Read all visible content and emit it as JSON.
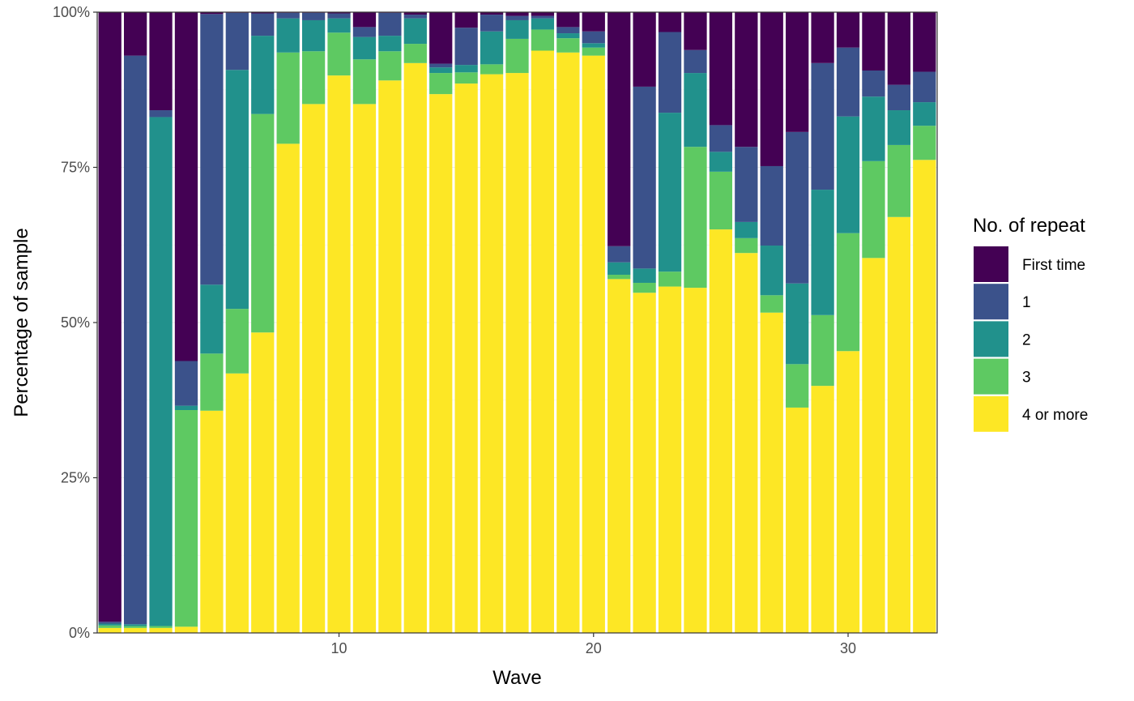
{
  "chart_data": {
    "type": "bar",
    "stacked": true,
    "percent": true,
    "xlabel": "Wave",
    "ylabel": "Percentage of sample",
    "x": [
      1,
      2,
      3,
      4,
      5,
      6,
      7,
      8,
      9,
      10,
      11,
      12,
      13,
      14,
      15,
      16,
      17,
      18,
      19,
      20,
      21,
      22,
      23,
      24,
      25,
      26,
      27,
      28,
      29,
      30,
      31,
      32,
      33
    ],
    "x_ticks": [
      10,
      20,
      30
    ],
    "x_tick_labels": [
      "10",
      "20",
      "30"
    ],
    "ylim": [
      0,
      100
    ],
    "y_ticks": [
      0,
      25,
      50,
      75,
      100
    ],
    "y_tick_labels": [
      "0%",
      "25%",
      "50%",
      "75%",
      "100%"
    ],
    "grid": true,
    "legend": {
      "title": "No. of repeat",
      "position": "right"
    },
    "series": [
      {
        "name": "4 or more",
        "color": "#fde725",
        "values": [
          0.8,
          0.8,
          0.8,
          1.0,
          35.8,
          41.8,
          48.4,
          78.8,
          85.2,
          89.8,
          85.2,
          89.0,
          91.8,
          86.8,
          88.5,
          90.0,
          90.2,
          93.8,
          93.5,
          93.0,
          57.0,
          54.8,
          55.8,
          55.6,
          65.0,
          61.2,
          51.6,
          36.3,
          39.8,
          45.4,
          60.4,
          67.0,
          76.2
        ]
      },
      {
        "name": "3",
        "color": "#5ec962",
        "values": [
          0.4,
          0.3,
          0.3,
          34.9,
          9.2,
          10.4,
          35.2,
          14.7,
          8.5,
          6.9,
          7.2,
          4.7,
          3.1,
          3.4,
          1.8,
          1.6,
          5.5,
          3.4,
          2.3,
          1.3,
          0.7,
          1.6,
          2.4,
          22.7,
          9.3,
          2.4,
          2.8,
          7.0,
          11.4,
          19.0,
          15.6,
          11.6,
          5.5
        ]
      },
      {
        "name": "2",
        "color": "#21918c",
        "values": [
          0.3,
          0.3,
          82.0,
          0.7,
          11.1,
          38.5,
          12.6,
          5.5,
          5.0,
          2.3,
          3.6,
          2.5,
          4.1,
          0.9,
          1.2,
          5.3,
          3.0,
          1.8,
          0.8,
          0.7,
          2.0,
          2.3,
          25.6,
          11.9,
          3.2,
          2.6,
          8.0,
          13.0,
          20.2,
          18.8,
          10.4,
          5.6,
          3.8
        ]
      },
      {
        "name": "1",
        "color": "#3b528b",
        "values": [
          0.3,
          91.6,
          1.1,
          7.2,
          43.6,
          9.2,
          3.6,
          0.9,
          1.2,
          0.8,
          1.6,
          3.7,
          0.6,
          0.6,
          6.0,
          2.7,
          0.7,
          0.4,
          1.0,
          1.9,
          2.6,
          29.3,
          13.0,
          3.7,
          4.3,
          12.1,
          12.8,
          24.4,
          20.4,
          11.1,
          4.2,
          4.1,
          4.9
        ]
      },
      {
        "name": "First time",
        "color": "#440154",
        "values": [
          98.2,
          7.0,
          15.8,
          56.2,
          0.3,
          0.1,
          0.2,
          0.1,
          0.1,
          0.2,
          2.4,
          0.1,
          0.4,
          8.3,
          2.5,
          0.4,
          0.6,
          0.6,
          2.4,
          3.1,
          37.7,
          12.0,
          3.2,
          6.1,
          18.2,
          21.7,
          24.8,
          19.3,
          8.2,
          5.7,
          9.4,
          11.7,
          9.6
        ]
      }
    ]
  }
}
